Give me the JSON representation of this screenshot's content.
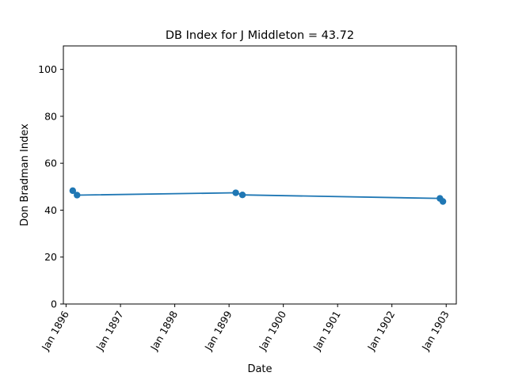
{
  "chart_data": {
    "type": "line",
    "title": "DB Index for J Middleton = 43.72",
    "xlabel": "Date",
    "ylabel": "Don Bradman Index",
    "ylim": [
      0,
      110
    ],
    "xlim": [
      "1895-12-14",
      "1903-03-10"
    ],
    "yticks": [
      0,
      20,
      40,
      60,
      80,
      100
    ],
    "xticks": [
      {
        "date": "1896-01-01",
        "label": "Jan 1896"
      },
      {
        "date": "1897-01-01",
        "label": "Jan 1897"
      },
      {
        "date": "1898-01-01",
        "label": "Jan 1898"
      },
      {
        "date": "1899-01-01",
        "label": "Jan 1899"
      },
      {
        "date": "1900-01-01",
        "label": "Jan 1900"
      },
      {
        "date": "1901-01-01",
        "label": "Jan 1901"
      },
      {
        "date": "1902-01-01",
        "label": "Jan 1902"
      },
      {
        "date": "1903-01-01",
        "label": "Jan 1903"
      }
    ],
    "grid": false,
    "series": [
      {
        "color": "#1f77b4",
        "points": [
          {
            "x": "1896-02-15",
            "y": 48.3
          },
          {
            "x": "1896-03-15",
            "y": 46.4
          },
          {
            "x": "1899-02-15",
            "y": 47.4
          },
          {
            "x": "1899-04-01",
            "y": 46.5
          },
          {
            "x": "1902-11-20",
            "y": 45.0
          },
          {
            "x": "1902-12-10",
            "y": 43.7
          }
        ]
      }
    ]
  }
}
